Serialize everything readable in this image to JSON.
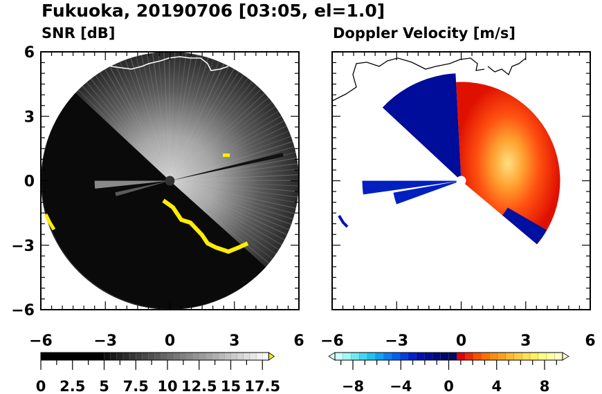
{
  "title": "Fukuoka, 20190706 [03:05, el=1.0]",
  "chart_data": [
    {
      "type": "heatmap",
      "title": "SNR [dB]",
      "xlabel": "",
      "ylabel": "",
      "xlim": [
        -6,
        6
      ],
      "ylim": [
        -6,
        6
      ],
      "xticks": [
        "−6",
        "−3",
        "0",
        "3",
        "6"
      ],
      "yticks": [
        "6",
        "3",
        "0",
        "−3",
        "−6"
      ],
      "grid": false,
      "radar_range_km": 6,
      "colorbar": {
        "ticks": [
          "0",
          "2.5",
          "5",
          "7.5",
          "10",
          "12.5",
          "15",
          "17.5"
        ],
        "range": [
          0,
          18
        ],
        "low_color": "#000000",
        "high_color": "#ffffff",
        "over_color": "#ffee00"
      },
      "features": {
        "low_snr_sector_deg": [
          137,
          318
        ],
        "echo_overflow_color": "#ffee00"
      }
    },
    {
      "type": "heatmap",
      "title": "Doppler Velocity [m/s]",
      "xlabel": "",
      "ylabel": "",
      "xlim": [
        -6,
        6
      ],
      "ylim": [
        -6,
        6
      ],
      "xticks": [
        "−6",
        "−3",
        "0",
        "3",
        "6"
      ],
      "yticks": [],
      "grid": false,
      "colorbar": {
        "ticks": [
          "−8",
          "−4",
          "0",
          "4",
          "8"
        ],
        "range": [
          -9.5,
          9.5
        ],
        "colors": [
          "#c8ffff",
          "#a0f8f8",
          "#70eaf0",
          "#40d8f0",
          "#20c0f0",
          "#10a0f0",
          "#0880f0",
          "#0060f0",
          "#0040e0",
          "#0020d0",
          "#0010b0",
          "#000c98",
          "#000a80",
          "#00086c",
          "#000a60",
          "#e00000",
          "#f02800",
          "#f85000",
          "#ff7000",
          "#ff8c10",
          "#ffa020",
          "#ffb830",
          "#ffcc40",
          "#ffe050",
          "#fff060",
          "#ffff80",
          "#ffffa0",
          "#ffffc0"
        ]
      },
      "features": {
        "approaching_sector_deg": [
          93,
          137
        ],
        "receding_sector_deg": [
          -40,
          93
        ]
      }
    }
  ]
}
